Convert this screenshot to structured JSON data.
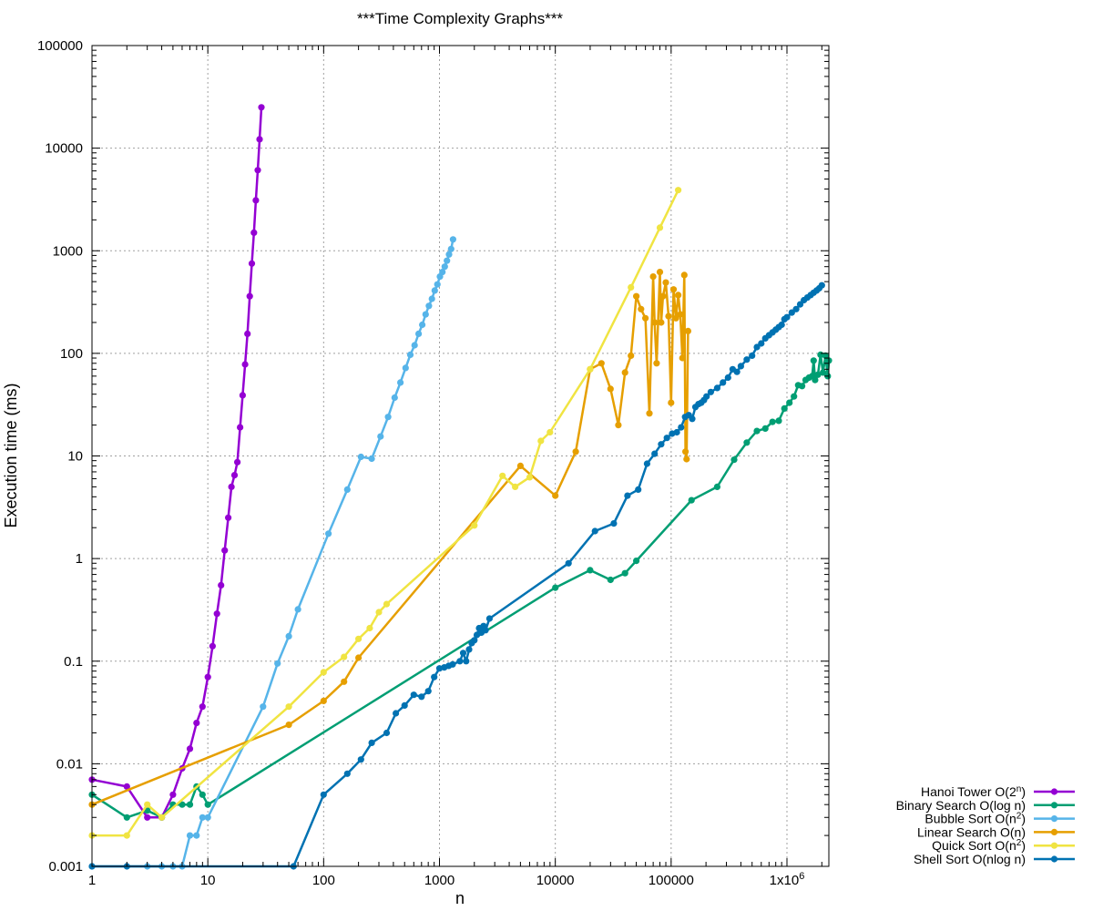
{
  "chart_data": {
    "type": "line",
    "title": "***Time Complexity Graphs***",
    "xlabel": "n",
    "ylabel": "Execution time (ms)",
    "xscale": "log",
    "yscale": "log",
    "xlim": [
      1,
      2300000
    ],
    "ylim": [
      0.001,
      100000
    ],
    "grid": true,
    "legend_position": "bottom-right outside",
    "xticks": [
      {
        "value": 1,
        "label": "1"
      },
      {
        "value": 10,
        "label": "10"
      },
      {
        "value": 100,
        "label": "100"
      },
      {
        "value": 1000,
        "label": "1000"
      },
      {
        "value": 10000,
        "label": "10000"
      },
      {
        "value": 100000,
        "label": "100000"
      },
      {
        "value": 1000000,
        "label": "1x10",
        "sup": "6"
      }
    ],
    "yticks": [
      {
        "value": 0.001,
        "label": "0.001"
      },
      {
        "value": 0.01,
        "label": "0.01"
      },
      {
        "value": 0.1,
        "label": "0.1"
      },
      {
        "value": 1,
        "label": "1"
      },
      {
        "value": 10,
        "label": "10"
      },
      {
        "value": 100,
        "label": "100"
      },
      {
        "value": 1000,
        "label": "1000"
      },
      {
        "value": 10000,
        "label": "10000"
      },
      {
        "value": 100000,
        "label": "100000"
      }
    ],
    "series": [
      {
        "name": "Hanoi Tower O(2n)",
        "legend": {
          "pre": "Hanoi Tower O(2",
          "sup": "n",
          "post": ")"
        },
        "color": "#9400d3",
        "points": [
          [
            1,
            0.007
          ],
          [
            2,
            0.006
          ],
          [
            3,
            0.003
          ],
          [
            4,
            0.003
          ],
          [
            5,
            0.005
          ],
          [
            6,
            0.009
          ],
          [
            7,
            0.014
          ],
          [
            8,
            0.025
          ],
          [
            9,
            0.036
          ],
          [
            10,
            0.07
          ],
          [
            11,
            0.14
          ],
          [
            12,
            0.29
          ],
          [
            13,
            0.55
          ],
          [
            14,
            1.2
          ],
          [
            15,
            2.5
          ],
          [
            16,
            5
          ],
          [
            17,
            6.5
          ],
          [
            18,
            8.7
          ],
          [
            19,
            19
          ],
          [
            20,
            39
          ],
          [
            21,
            78
          ],
          [
            22,
            155
          ],
          [
            23,
            360
          ],
          [
            24,
            750
          ],
          [
            25,
            1500
          ],
          [
            26,
            3100
          ],
          [
            27,
            6100
          ],
          [
            28,
            12200
          ],
          [
            29,
            25000
          ]
        ]
      },
      {
        "name": "Binary Search O(log n)",
        "legend": {
          "pre": "Binary Search O(log n)",
          "sup": "",
          "post": ""
        },
        "color": "#009e73",
        "points": [
          [
            1,
            0.005
          ],
          [
            2,
            0.003
          ],
          [
            3,
            0.0035
          ],
          [
            4,
            0.003
          ],
          [
            5,
            0.004
          ],
          [
            6,
            0.004
          ],
          [
            7,
            0.004
          ],
          [
            8,
            0.006
          ],
          [
            9,
            0.005
          ],
          [
            10,
            0.004
          ],
          [
            10000,
            0.52
          ],
          [
            20000,
            0.77
          ],
          [
            30000,
            0.62
          ],
          [
            40000,
            0.72
          ],
          [
            50000,
            0.95
          ],
          [
            150000,
            3.7
          ],
          [
            250000,
            5
          ],
          [
            350000,
            9.2
          ],
          [
            450000,
            13.5
          ],
          [
            550000,
            17.5
          ],
          [
            650000,
            18.5
          ],
          [
            750000,
            21.5
          ],
          [
            850000,
            22
          ],
          [
            950000,
            29
          ],
          [
            1050000,
            33
          ],
          [
            1150000,
            38
          ],
          [
            1250000,
            49
          ],
          [
            1350000,
            48
          ],
          [
            1450000,
            55
          ],
          [
            1550000,
            58
          ],
          [
            1650000,
            60
          ],
          [
            1700000,
            85
          ],
          [
            1750000,
            55
          ],
          [
            1850000,
            62
          ],
          [
            1950000,
            97
          ],
          [
            2050000,
            65
          ],
          [
            2150000,
            95
          ],
          [
            2250000,
            60
          ],
          [
            2300000,
            85
          ]
        ]
      },
      {
        "name": "Bubble Sort O(n2)",
        "legend": {
          "pre": "Bubble Sort O(n",
          "sup": "2",
          "post": ")"
        },
        "color": "#56b4e9",
        "points": [
          [
            1,
            0.001
          ],
          [
            3,
            0.001
          ],
          [
            4,
            0.001
          ],
          [
            5,
            0.001
          ],
          [
            6,
            0.001
          ],
          [
            7,
            0.002
          ],
          [
            8,
            0.002
          ],
          [
            9,
            0.003
          ],
          [
            10,
            0.003
          ],
          [
            30,
            0.036
          ],
          [
            40,
            0.095
          ],
          [
            50,
            0.175
          ],
          [
            60,
            0.32
          ],
          [
            110,
            1.75
          ],
          [
            160,
            4.7
          ],
          [
            210,
            9.8
          ],
          [
            260,
            9.4
          ],
          [
            310,
            15.5
          ],
          [
            360,
            24
          ],
          [
            410,
            37
          ],
          [
            460,
            52
          ],
          [
            510,
            72
          ],
          [
            560,
            97
          ],
          [
            610,
            120
          ],
          [
            660,
            155
          ],
          [
            710,
            190
          ],
          [
            760,
            240
          ],
          [
            810,
            290
          ],
          [
            860,
            340
          ],
          [
            910,
            410
          ],
          [
            960,
            470
          ],
          [
            1010,
            560
          ],
          [
            1060,
            620
          ],
          [
            1110,
            700
          ],
          [
            1160,
            800
          ],
          [
            1210,
            920
          ],
          [
            1260,
            1040
          ],
          [
            1310,
            1290
          ]
        ]
      },
      {
        "name": "Linear Search O(n)",
        "legend": {
          "pre": "Linear Search O(n)",
          "sup": "",
          "post": ""
        },
        "color": "#e69f00",
        "points": [
          [
            1,
            0.004
          ],
          [
            50,
            0.024
          ],
          [
            100,
            0.041
          ],
          [
            150,
            0.063
          ],
          [
            200,
            0.108
          ],
          [
            5000,
            8
          ],
          [
            10000,
            4.1
          ],
          [
            15000,
            11
          ],
          [
            20000,
            70
          ],
          [
            25000,
            80
          ],
          [
            30000,
            45
          ],
          [
            35000,
            20
          ],
          [
            40000,
            65
          ],
          [
            45000,
            95
          ],
          [
            50000,
            360
          ],
          [
            55000,
            270
          ],
          [
            60000,
            220
          ],
          [
            65000,
            26
          ],
          [
            70000,
            560
          ],
          [
            72000,
            200
          ],
          [
            75000,
            80
          ],
          [
            80000,
            620
          ],
          [
            82000,
            200
          ],
          [
            85000,
            360
          ],
          [
            90000,
            490
          ],
          [
            95000,
            230
          ],
          [
            100000,
            33
          ],
          [
            105000,
            420
          ],
          [
            110000,
            220
          ],
          [
            115000,
            370
          ],
          [
            120000,
            240
          ],
          [
            125000,
            90
          ],
          [
            130000,
            580
          ],
          [
            133000,
            11
          ],
          [
            136000,
            9.3
          ],
          [
            140000,
            165
          ]
        ]
      },
      {
        "name": "Quick Sort O(n2)",
        "legend": {
          "pre": "Quick Sort O(n",
          "sup": "2",
          "post": ")"
        },
        "color": "#f0e442",
        "points": [
          [
            1,
            0.002
          ],
          [
            2,
            0.002
          ],
          [
            3,
            0.004
          ],
          [
            4,
            0.003
          ],
          [
            50,
            0.036
          ],
          [
            100,
            0.078
          ],
          [
            150,
            0.11
          ],
          [
            200,
            0.165
          ],
          [
            250,
            0.21
          ],
          [
            300,
            0.3
          ],
          [
            350,
            0.36
          ],
          [
            2000,
            2.1
          ],
          [
            3500,
            6.4
          ],
          [
            4500,
            5
          ],
          [
            6000,
            6.2
          ],
          [
            7500,
            14
          ],
          [
            9000,
            17
          ],
          [
            20000,
            70
          ],
          [
            45000,
            440
          ],
          [
            80000,
            1680
          ],
          [
            115000,
            3900
          ]
        ]
      },
      {
        "name": "Shell Sort O(nlog n)",
        "legend": {
          "pre": "Shell Sort O(nlog n)",
          "sup": "",
          "post": ""
        },
        "color": "#0072b2",
        "points": [
          [
            1,
            0.001
          ],
          [
            2,
            0.001
          ],
          [
            55,
            0.001
          ],
          [
            100,
            0.005
          ],
          [
            160,
            0.008
          ],
          [
            210,
            0.011
          ],
          [
            260,
            0.016
          ],
          [
            350,
            0.02
          ],
          [
            420,
            0.031
          ],
          [
            500,
            0.037
          ],
          [
            600,
            0.047
          ],
          [
            700,
            0.045
          ],
          [
            800,
            0.051
          ],
          [
            900,
            0.07
          ],
          [
            1000,
            0.085
          ],
          [
            1100,
            0.087
          ],
          [
            1200,
            0.09
          ],
          [
            1300,
            0.093
          ],
          [
            1500,
            0.1
          ],
          [
            1600,
            0.12
          ],
          [
            1700,
            0.1
          ],
          [
            1800,
            0.13
          ],
          [
            1900,
            0.15
          ],
          [
            2000,
            0.16
          ],
          [
            2100,
            0.18
          ],
          [
            2200,
            0.21
          ],
          [
            2300,
            0.19
          ],
          [
            2400,
            0.22
          ],
          [
            2500,
            0.2
          ],
          [
            2700,
            0.26
          ],
          [
            13000,
            0.9
          ],
          [
            22000,
            1.85
          ],
          [
            32000,
            2.2
          ],
          [
            42000,
            4.1
          ],
          [
            52000,
            4.7
          ],
          [
            62000,
            8.4
          ],
          [
            72000,
            10.5
          ],
          [
            82000,
            13
          ],
          [
            92000,
            15
          ],
          [
            102000,
            16.5
          ],
          [
            112000,
            17
          ],
          [
            122000,
            19
          ],
          [
            132000,
            24
          ],
          [
            142000,
            25
          ],
          [
            152000,
            23
          ],
          [
            162000,
            30
          ],
          [
            172000,
            32
          ],
          [
            182000,
            33
          ],
          [
            192000,
            35
          ],
          [
            202000,
            38
          ],
          [
            220000,
            42
          ],
          [
            250000,
            46
          ],
          [
            280000,
            52
          ],
          [
            310000,
            58
          ],
          [
            340000,
            70
          ],
          [
            370000,
            66
          ],
          [
            400000,
            75
          ],
          [
            450000,
            87
          ],
          [
            500000,
            95
          ],
          [
            550000,
            115
          ],
          [
            600000,
            125
          ],
          [
            650000,
            140
          ],
          [
            700000,
            150
          ],
          [
            750000,
            160
          ],
          [
            800000,
            170
          ],
          [
            850000,
            180
          ],
          [
            900000,
            190
          ],
          [
            950000,
            215
          ],
          [
            1000000,
            225
          ],
          [
            1100000,
            250
          ],
          [
            1200000,
            270
          ],
          [
            1300000,
            300
          ],
          [
            1400000,
            330
          ],
          [
            1500000,
            350
          ],
          [
            1600000,
            370
          ],
          [
            1700000,
            390
          ],
          [
            1800000,
            410
          ],
          [
            1900000,
            430
          ],
          [
            2000000,
            460
          ]
        ]
      }
    ]
  }
}
